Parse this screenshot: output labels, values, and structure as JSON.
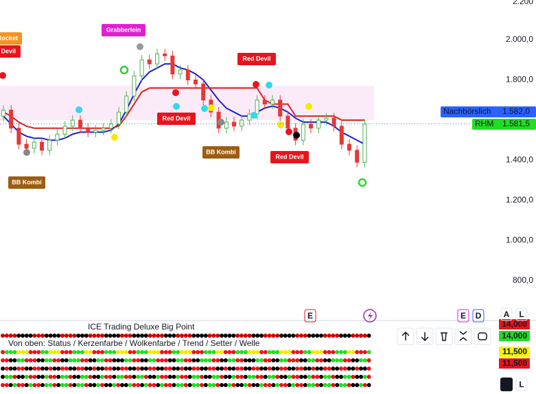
{
  "chart_data": {
    "type": "candlestick",
    "open": [
      1620,
      1650,
      1560,
      1480,
      1460,
      1490,
      1450,
      1500,
      1530,
      1570,
      1600,
      1560,
      1540,
      1550,
      1560,
      1580,
      1640,
      1720,
      1820,
      1900,
      1880,
      1930,
      1920,
      1830,
      1850,
      1800,
      1780,
      1700,
      1640,
      1560,
      1590,
      1570,
      1600,
      1630,
      1700,
      1680,
      1700,
      1620,
      1560,
      1500,
      1580,
      1560,
      1600,
      1610,
      1570,
      1480,
      1450,
      1390
    ],
    "high": [
      1675,
      1675,
      1585,
      1505,
      1515,
      1515,
      1525,
      1555,
      1595,
      1625,
      1625,
      1585,
      1575,
      1585,
      1605,
      1665,
      1745,
      1845,
      1925,
      1925,
      1955,
      1955,
      1945,
      1875,
      1875,
      1825,
      1805,
      1725,
      1665,
      1615,
      1615,
      1625,
      1655,
      1725,
      1725,
      1725,
      1725,
      1645,
      1585,
      1605,
      1605,
      1625,
      1635,
      1635,
      1595,
      1505,
      1475,
      1605
    ],
    "low": [
      1595,
      1535,
      1455,
      1435,
      1435,
      1425,
      1425,
      1475,
      1505,
      1545,
      1535,
      1515,
      1515,
      1525,
      1535,
      1555,
      1615,
      1695,
      1795,
      1855,
      1855,
      1895,
      1805,
      1805,
      1775,
      1755,
      1675,
      1615,
      1535,
      1535,
      1545,
      1545,
      1575,
      1605,
      1655,
      1655,
      1595,
      1535,
      1475,
      1475,
      1535,
      1535,
      1575,
      1545,
      1455,
      1425,
      1365,
      1365
    ],
    "close": [
      1650,
      1560,
      1480,
      1460,
      1490,
      1450,
      1500,
      1530,
      1570,
      1600,
      1560,
      1540,
      1550,
      1560,
      1580,
      1640,
      1720,
      1820,
      1900,
      1880,
      1930,
      1920,
      1830,
      1850,
      1800,
      1780,
      1700,
      1640,
      1560,
      1590,
      1570,
      1600,
      1630,
      1700,
      1680,
      1700,
      1620,
      1560,
      1500,
      1580,
      1560,
      1600,
      1610,
      1570,
      1480,
      1450,
      1390,
      1580
    ],
    "up_color": "#4caf50",
    "down_color": "#e53935",
    "series": [
      {
        "color": "#1c1cd6",
        "values": [
          1620,
          1580,
          1540,
          1520,
          1510,
          1510,
          1500,
          1500,
          1510,
          1530,
          1540,
          1540,
          1540,
          1540,
          1550,
          1580,
          1650,
          1730,
          1800,
          1840,
          1860,
          1880,
          1880,
          1860,
          1850,
          1830,
          1800,
          1750,
          1700,
          1660,
          1640,
          1620,
          1620,
          1640,
          1660,
          1670,
          1660,
          1640,
          1610,
          1590,
          1590,
          1590,
          1590,
          1570,
          1540,
          1520,
          1500,
          1480
        ]
      },
      {
        "color": "#e0201b",
        "values": [
          1640,
          1620,
          1590,
          1570,
          1560,
          1560,
          1560,
          1560,
          1560,
          1560,
          1560,
          1560,
          1560,
          1560,
          1560,
          1570,
          1620,
          1680,
          1740,
          1760,
          1760,
          1760,
          1760,
          1760,
          1760,
          1760,
          1760,
          1760,
          1760,
          1760,
          1760,
          1760,
          1760,
          1760,
          1700,
          1680,
          1680,
          1680,
          1620,
          1620,
          1620,
          1620,
          1620,
          1620,
          1600,
          1600,
          1600,
          1600
        ]
      }
    ],
    "ylim": [
      610,
      2200
    ],
    "yticks": [
      {
        "value": 2200,
        "label": "2.200"
      },
      {
        "value": 2000,
        "label": "2.000,0"
      },
      {
        "value": 1800,
        "label": "1.800,0"
      },
      {
        "value": 1400,
        "label": "1.400,0"
      },
      {
        "value": 1200,
        "label": "1.200,0"
      },
      {
        "value": 1000,
        "label": "1.000,0"
      },
      {
        "value": 800,
        "label": "800,0"
      }
    ],
    "price_labels": [
      {
        "name": "Nachbörslich",
        "value": 1582,
        "label": "1.582,0",
        "color": "#2962ff"
      },
      {
        "name": "RHM",
        "value": 1581.5,
        "label": "1.581,5",
        "color": "#22dd22"
      }
    ],
    "annotations": [
      {
        "text": "Rocket",
        "color": "#f7931e"
      },
      {
        "text": "Red Devil",
        "color": "#e8141c"
      },
      {
        "text": "Grabberlein",
        "color": "#e020d0"
      },
      {
        "text": "Red Devil",
        "color": "#e8141c"
      },
      {
        "text": "Red Devil",
        "color": "#e8141c"
      },
      {
        "text": "Red Devil",
        "color": "#e8141c"
      },
      {
        "text": "BB Kombi",
        "color": "#9c5d12"
      },
      {
        "text": "BB Kombi",
        "color": "#9c5d12"
      }
    ]
  },
  "indicator": {
    "title": "ICE Trading Deluxe Big Point",
    "legend": "Von oben: Status / Kerzenfarbe / Wolkenfarbe / Trend / Setter / Welle",
    "values": [
      {
        "label": "14,000",
        "color": "#e8141c"
      },
      {
        "label": "14,000",
        "color": "#22dd22"
      },
      {
        "label": "11,500",
        "color": "#f5f500"
      },
      {
        "label": "11,500",
        "color": "#e8141c"
      }
    ]
  },
  "toolbar": {
    "buttons": [
      "E",
      "E",
      "D",
      "A",
      "L",
      "A",
      "L"
    ]
  }
}
